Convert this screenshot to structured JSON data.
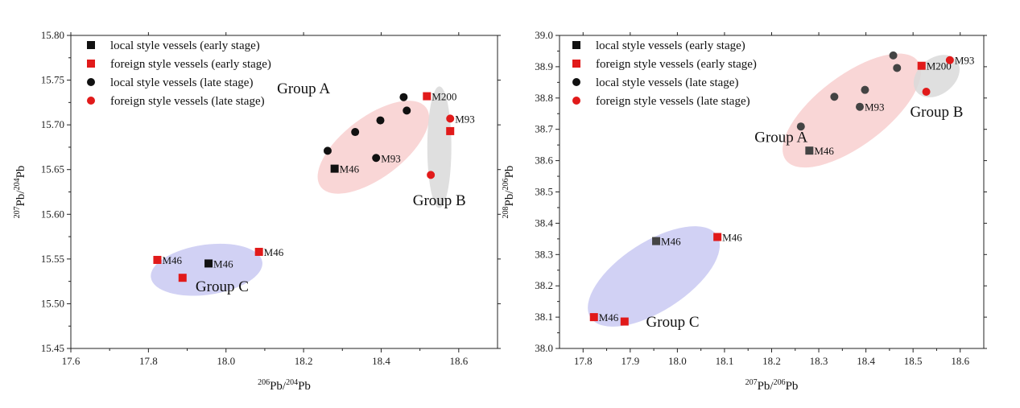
{
  "colors": {
    "local": "#111111",
    "foreign": "#e11a1a",
    "local_late_right": "#444444",
    "groupA": "#f8cfcf",
    "groupB": "#d9d9d9",
    "groupC": "#c9c9f2"
  },
  "legend": [
    {
      "label": "local style vessels (early stage)",
      "marker": "square",
      "color": "#111111"
    },
    {
      "label": "foreign style vessels (early stage)",
      "marker": "square",
      "color": "#e11a1a"
    },
    {
      "label": "local style vessels (late stage)",
      "marker": "circle",
      "color": "#111111"
    },
    {
      "label": "foreign style vessels (late stage)",
      "marker": "circle",
      "color": "#e11a1a"
    }
  ],
  "chart_data": [
    {
      "type": "scatter",
      "xlim": [
        17.6,
        18.7
      ],
      "ylim": [
        15.45,
        15.8
      ],
      "xticks": [
        "17.6",
        "17.8",
        "18.0",
        "18.2",
        "18.4",
        "18.6"
      ],
      "yticks": [
        "15.45",
        "15.50",
        "15.55",
        "15.60",
        "15.65",
        "15.70",
        "15.75",
        "15.80"
      ],
      "xlabel": {
        "sup": "206",
        "base": "Pb/",
        "sup2": "204",
        "base2": "Pb"
      },
      "ylabel": {
        "sup": "207",
        "base": "Pb/",
        "sup2": "204",
        "base2": "Pb"
      },
      "groups": [
        {
          "label": "Group A",
          "cx": 18.38,
          "cy": 15.675,
          "rx": 0.17,
          "ry": 0.034,
          "angle": -37,
          "color": "#f8cfcf",
          "lx": 18.2,
          "ly": 15.735
        },
        {
          "label": "Group B",
          "cx": 18.55,
          "cy": 15.675,
          "rx": 0.031,
          "ry": 0.068,
          "angle": 0,
          "color": "#d9d9d9",
          "lx": 18.55,
          "ly": 15.61
        },
        {
          "label": "Group C",
          "cx": 17.95,
          "cy": 15.538,
          "rx": 0.145,
          "ry": 0.028,
          "angle": -8,
          "color": "#c9c9f2",
          "lx": 17.99,
          "ly": 15.514
        }
      ],
      "points": [
        {
          "x": 18.28,
          "y": 15.651,
          "marker": "square",
          "color": "#111111",
          "label": "M46"
        },
        {
          "x": 17.955,
          "y": 15.545,
          "marker": "square",
          "color": "#111111",
          "label": "M46"
        },
        {
          "x": 17.823,
          "y": 15.549,
          "marker": "square",
          "color": "#e11a1a",
          "label": "M46"
        },
        {
          "x": 17.888,
          "y": 15.529,
          "marker": "square",
          "color": "#e11a1a",
          "label": ""
        },
        {
          "x": 18.085,
          "y": 15.558,
          "marker": "square",
          "color": "#e11a1a",
          "label": "M46"
        },
        {
          "x": 18.518,
          "y": 15.732,
          "marker": "square",
          "color": "#e11a1a",
          "label": "M200"
        },
        {
          "x": 18.578,
          "y": 15.693,
          "marker": "square",
          "color": "#e11a1a",
          "label": ""
        },
        {
          "x": 18.262,
          "y": 15.671,
          "marker": "circle",
          "color": "#111111",
          "label": ""
        },
        {
          "x": 18.333,
          "y": 15.692,
          "marker": "circle",
          "color": "#111111",
          "label": ""
        },
        {
          "x": 18.398,
          "y": 15.705,
          "marker": "circle",
          "color": "#111111",
          "label": ""
        },
        {
          "x": 18.387,
          "y": 15.663,
          "marker": "circle",
          "color": "#111111",
          "label": "M93"
        },
        {
          "x": 18.458,
          "y": 15.731,
          "marker": "circle",
          "color": "#111111",
          "label": ""
        },
        {
          "x": 18.466,
          "y": 15.716,
          "marker": "circle",
          "color": "#111111",
          "label": ""
        },
        {
          "x": 18.528,
          "y": 15.644,
          "marker": "circle",
          "color": "#e11a1a",
          "label": ""
        },
        {
          "x": 18.578,
          "y": 15.707,
          "marker": "circle",
          "color": "#e11a1a",
          "label": "M93"
        }
      ]
    },
    {
      "type": "scatter",
      "xlim": [
        17.75,
        18.65
      ],
      "ylim": [
        38.0,
        39.0
      ],
      "xticks": [
        "17.8",
        "17.9",
        "18.0",
        "18.1",
        "18.2",
        "18.3",
        "18.4",
        "18.5",
        "18.6"
      ],
      "yticks": [
        "38.0",
        "38.1",
        "38.2",
        "38.3",
        "38.4",
        "38.5",
        "38.6",
        "38.7",
        "38.8",
        "38.9",
        "39.0"
      ],
      "xlabel": {
        "sup": "207",
        "base": "Pb/",
        "sup2": "206",
        "base2": "Pb"
      },
      "ylabel": {
        "sup": "208",
        "base": "Pb/",
        "sup2": "206",
        "base2": "Pb"
      },
      "groups": [
        {
          "label": "Group A",
          "cx": 18.37,
          "cy": 38.76,
          "rx": 0.175,
          "ry": 0.112,
          "angle": -37,
          "color": "#f8cfcf",
          "lx": 18.22,
          "ly": 38.66
        },
        {
          "label": "Group B",
          "cx": 18.55,
          "cy": 38.87,
          "rx": 0.054,
          "ry": 0.058,
          "angle": -38,
          "color": "#d9d9d9",
          "lx": 18.55,
          "ly": 38.74
        },
        {
          "label": "Group C",
          "cx": 17.95,
          "cy": 38.23,
          "rx": 0.16,
          "ry": 0.11,
          "angle": -33,
          "color": "#c9c9f2",
          "lx": 17.99,
          "ly": 38.07
        }
      ],
      "points": [
        {
          "x": 17.823,
          "y": 38.1,
          "marker": "square",
          "color": "#e11a1a",
          "label": "M46"
        },
        {
          "x": 17.888,
          "y": 38.086,
          "marker": "square",
          "color": "#e11a1a",
          "label": ""
        },
        {
          "x": 17.955,
          "y": 38.343,
          "marker": "square",
          "color": "#444444",
          "label": "M46"
        },
        {
          "x": 18.085,
          "y": 38.356,
          "marker": "square",
          "color": "#e11a1a",
          "label": "M46"
        },
        {
          "x": 18.28,
          "y": 38.632,
          "marker": "square",
          "color": "#444444",
          "label": "M46"
        },
        {
          "x": 18.518,
          "y": 38.903,
          "marker": "square",
          "color": "#e11a1a",
          "label": "M200"
        },
        {
          "x": 18.262,
          "y": 38.709,
          "marker": "circle",
          "color": "#444444",
          "label": ""
        },
        {
          "x": 18.333,
          "y": 38.804,
          "marker": "circle",
          "color": "#444444",
          "label": ""
        },
        {
          "x": 18.398,
          "y": 38.826,
          "marker": "circle",
          "color": "#444444",
          "label": ""
        },
        {
          "x": 18.387,
          "y": 38.772,
          "marker": "circle",
          "color": "#444444",
          "label": "M93"
        },
        {
          "x": 18.458,
          "y": 38.936,
          "marker": "circle",
          "color": "#444444",
          "label": ""
        },
        {
          "x": 18.466,
          "y": 38.896,
          "marker": "circle",
          "color": "#444444",
          "label": ""
        },
        {
          "x": 18.528,
          "y": 38.82,
          "marker": "circle",
          "color": "#e11a1a",
          "label": ""
        },
        {
          "x": 18.578,
          "y": 38.921,
          "marker": "circle",
          "color": "#e11a1a",
          "label": "M93"
        }
      ]
    }
  ]
}
